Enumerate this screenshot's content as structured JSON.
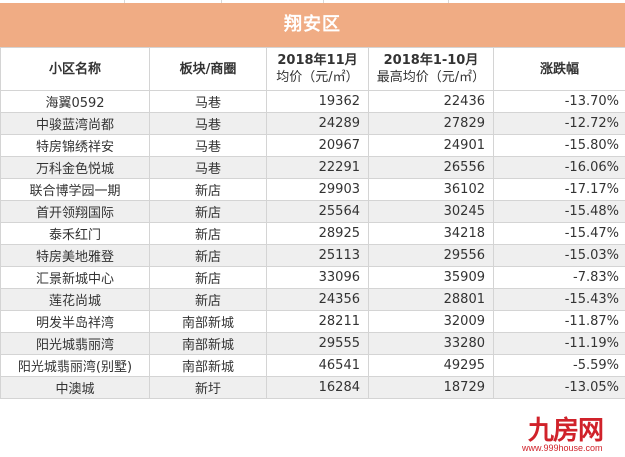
{
  "title": "翔安区",
  "headers": {
    "name": "小区名称",
    "area": "板块/商圈",
    "nov_line1": "2018年11月",
    "nov_line2": "均价（元/㎡）",
    "max_line1": "2018年1-10月",
    "max_line2": "最高均价（元/㎡）",
    "change": "涨跌幅"
  },
  "rows": [
    {
      "name": "海翼0592",
      "area": "马巷",
      "nov_price": "19362",
      "max_price": "22436",
      "change": "-13.70%"
    },
    {
      "name": "中骏蓝湾尚都",
      "area": "马巷",
      "nov_price": "24289",
      "max_price": "27829",
      "change": "-12.72%"
    },
    {
      "name": "特房锦绣祥安",
      "area": "马巷",
      "nov_price": "20967",
      "max_price": "24901",
      "change": "-15.80%"
    },
    {
      "name": "万科金色悦城",
      "area": "马巷",
      "nov_price": "22291",
      "max_price": "26556",
      "change": "-16.06%"
    },
    {
      "name": "联合博学园一期",
      "area": "新店",
      "nov_price": "29903",
      "max_price": "36102",
      "change": "-17.17%"
    },
    {
      "name": "首开领翔国际",
      "area": "新店",
      "nov_price": "25564",
      "max_price": "30245",
      "change": "-15.48%"
    },
    {
      "name": "泰禾红门",
      "area": "新店",
      "nov_price": "28925",
      "max_price": "34218",
      "change": "-15.47%"
    },
    {
      "name": "特房美地雅登",
      "area": "新店",
      "nov_price": "25113",
      "max_price": "29556",
      "change": "-15.03%"
    },
    {
      "name": "汇景新城中心",
      "area": "新店",
      "nov_price": "33096",
      "max_price": "35909",
      "change": "-7.83%"
    },
    {
      "name": "莲花尚城",
      "area": "新店",
      "nov_price": "24356",
      "max_price": "28801",
      "change": "-15.43%"
    },
    {
      "name": "明发半岛祥湾",
      "area": "南部新城",
      "nov_price": "28211",
      "max_price": "32009",
      "change": "-11.87%"
    },
    {
      "name": "阳光城翡丽湾",
      "area": "南部新城",
      "nov_price": "29555",
      "max_price": "33280",
      "change": "-11.19%"
    },
    {
      "name": "阳光城翡丽湾(别墅)",
      "area": "南部新城",
      "nov_price": "46541",
      "max_price": "49295",
      "change": "-5.59%"
    },
    {
      "name": "中澳城",
      "area": "新圩",
      "nov_price": "16284",
      "max_price": "18729",
      "change": "-13.05%"
    }
  ],
  "watermark": {
    "brand": "九房网",
    "url": "www.999house.com"
  }
}
